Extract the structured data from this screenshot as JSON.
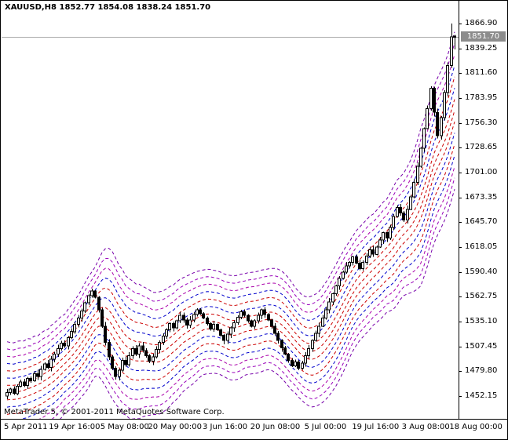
{
  "header": {
    "ohlc_text": "XAUUSD,H8  1852.77 1854.08 1838.24 1851.70"
  },
  "watermark": "MetaTrader 5, © 2001-2011 MetaQuotes Software Corp.",
  "chart_data": {
    "type": "candlestick",
    "symbol": "XAUUSD",
    "timeframe": "H8",
    "title": "XAUUSD,H8",
    "legend_position": "none",
    "grid": "off",
    "current_bar": {
      "open": 1852.77,
      "high": 1854.08,
      "low": 1838.24,
      "close": 1851.7
    },
    "bid_price": 1851.7,
    "y_axis": {
      "current_label": "1851.70",
      "ticks": [
        "1866.90",
        "1839.25",
        "1811.60",
        "1783.95",
        "1756.30",
        "1728.65",
        "1701.00",
        "1673.35",
        "1645.70",
        "1618.05",
        "1590.40",
        "1562.75",
        "1535.10",
        "1507.45",
        "1479.80",
        "1452.15"
      ],
      "range": [
        1452.15,
        1866.9
      ],
      "tick_step": 27.65
    },
    "x_axis": {
      "labels": [
        "5 Apr 2011",
        "19 Apr 16:00",
        "5 May 08:00",
        "20 May 00:00",
        "3 Jun 16:00",
        "20 Jun 08:00",
        "5 Jul 00:00",
        "19 Jul 16:00",
        "3 Aug 08:00",
        "18 Aug 00:00"
      ]
    },
    "closes": [
      1456,
      1460,
      1455,
      1463,
      1468,
      1464,
      1472,
      1469,
      1477,
      1474,
      1482,
      1488,
      1484,
      1493,
      1499,
      1505,
      1511,
      1508,
      1517,
      1524,
      1532,
      1539,
      1547,
      1556,
      1564,
      1569,
      1562,
      1548,
      1530,
      1512,
      1496,
      1483,
      1474,
      1481,
      1492,
      1487,
      1497,
      1505,
      1499,
      1508,
      1503,
      1497,
      1491,
      1496,
      1504,
      1512,
      1519,
      1526,
      1533,
      1528,
      1536,
      1542,
      1537,
      1531,
      1537,
      1543,
      1548,
      1544,
      1539,
      1533,
      1527,
      1532,
      1526,
      1520,
      1514,
      1521,
      1528,
      1534,
      1540,
      1546,
      1542,
      1536,
      1530,
      1536,
      1542,
      1548,
      1543,
      1537,
      1530,
      1522,
      1514,
      1506,
      1499,
      1492,
      1486,
      1490,
      1483,
      1489,
      1497,
      1505,
      1514,
      1522,
      1530,
      1539,
      1548,
      1557,
      1566,
      1575,
      1583,
      1590,
      1597,
      1601,
      1607,
      1600,
      1594,
      1601,
      1608,
      1615,
      1610,
      1618,
      1626,
      1634,
      1628,
      1640,
      1652,
      1662,
      1656,
      1648,
      1660,
      1674,
      1690,
      1708,
      1728,
      1750,
      1772,
      1795,
      1768,
      1742,
      1762,
      1790,
      1820,
      1852
    ],
    "bands": {
      "lines_per_side": 7,
      "style": "dashed envelope fan",
      "dash": "4 3",
      "center_color": "#cc0000",
      "colors": [
        "#cc0000",
        "#0000cc",
        "#cc0000",
        "#0000cc",
        "#aa00aa",
        "#9900bb",
        "#7700aa"
      ]
    },
    "colors": {
      "bull": "#ffffff",
      "bear": "#000000",
      "outline": "#000000",
      "bid_line": "#aaaaaa",
      "badge_bg": "#8c8c8c",
      "badge_text": "#ffffff",
      "axis_border": "#000000",
      "background": "#ffffff"
    }
  }
}
